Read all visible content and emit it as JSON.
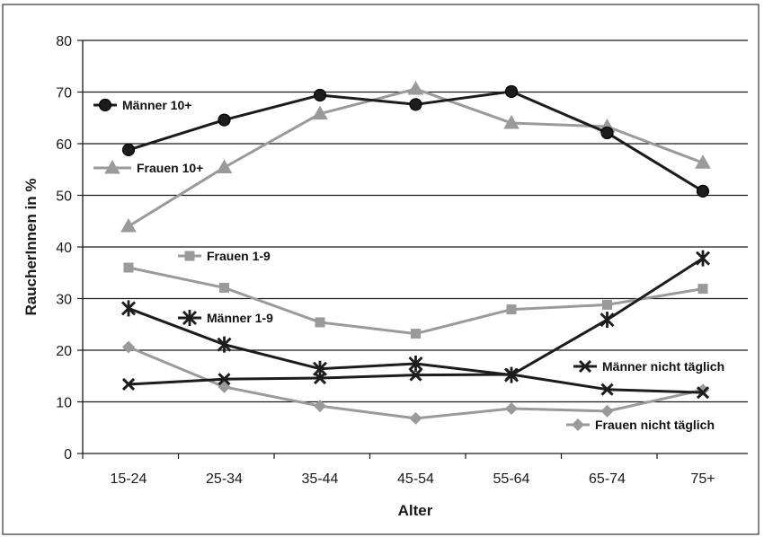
{
  "chart_data": {
    "type": "line",
    "title": "",
    "xlabel": "Alter",
    "ylabel": "RaucherInnen in %",
    "ylim": [
      0,
      80
    ],
    "yticks": [
      "0",
      "10",
      "20",
      "30",
      "40",
      "50",
      "60",
      "70",
      "80"
    ],
    "grid": true,
    "categories": [
      "15-24",
      "25-34",
      "35-44",
      "45-54",
      "55-64",
      "65-74",
      "75+"
    ],
    "series": [
      {
        "name": "Männer 10+",
        "values": [
          58.8,
          64.6,
          69.4,
          67.6,
          70.1,
          62.1,
          50.8
        ],
        "color": "#1c1c1c",
        "marker": "circle"
      },
      {
        "name": "Frauen 10+",
        "values": [
          44.0,
          55.4,
          65.8,
          70.6,
          64.0,
          63.3,
          56.3
        ],
        "color": "#9a9a9a",
        "marker": "triangle"
      },
      {
        "name": "Frauen 1-9",
        "values": [
          36.0,
          32.1,
          25.4,
          23.2,
          27.9,
          28.8,
          31.9
        ],
        "color": "#9a9a9a",
        "marker": "square"
      },
      {
        "name": "Männer 1-9",
        "values": [
          28.1,
          21.1,
          16.4,
          17.4,
          15.2,
          25.9,
          37.8
        ],
        "color": "#1c1c1c",
        "marker": "star"
      },
      {
        "name": "Männer nicht täglich",
        "values": [
          13.4,
          14.4,
          14.6,
          15.2,
          15.3,
          12.4,
          11.8
        ],
        "color": "#1c1c1c",
        "marker": "x"
      },
      {
        "name": "Frauen nicht täglich",
        "values": [
          20.6,
          12.9,
          9.2,
          6.8,
          8.7,
          8.2,
          12.3
        ],
        "color": "#9a9a9a",
        "marker": "diamond"
      }
    ]
  }
}
